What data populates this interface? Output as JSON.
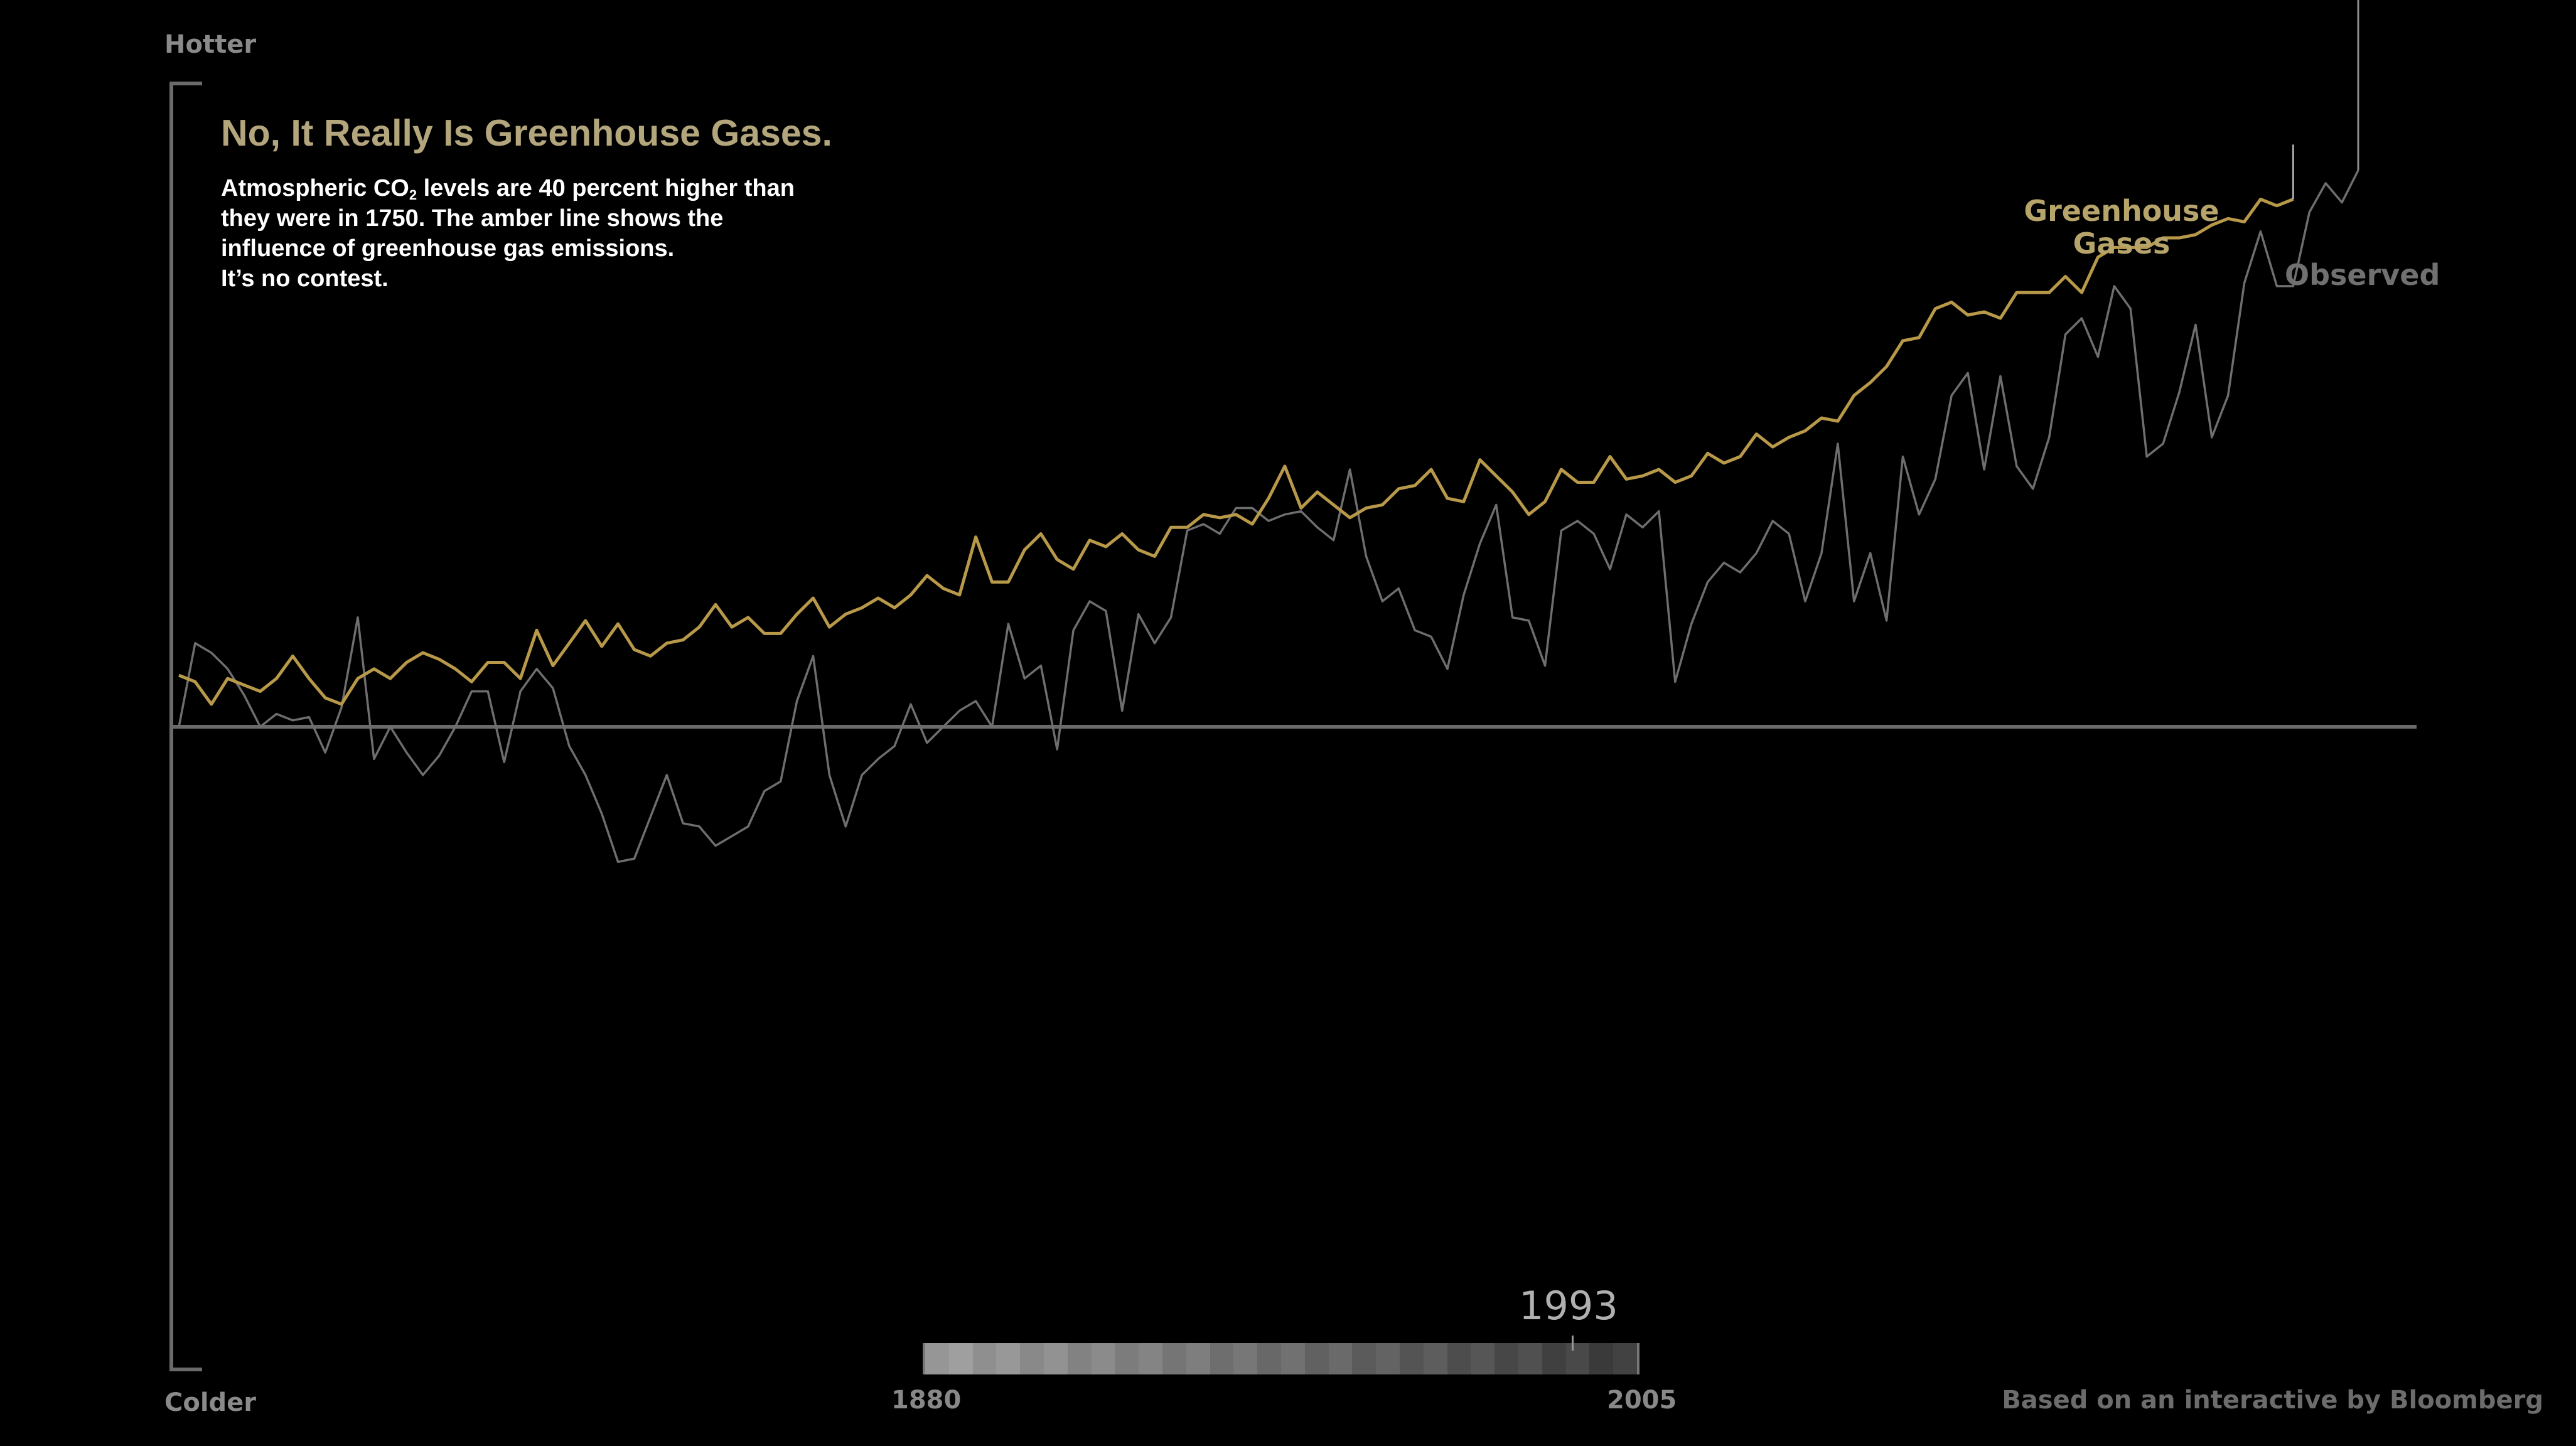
{
  "labels": {
    "top": "Hotter",
    "bottom": "Colder",
    "title": "No, It Really Is Greenhouse Gases.",
    "desc_line1_pre": "Atmospheric CO",
    "desc_sub": "2",
    "desc_line1_post": " levels are 40 percent higher than",
    "desc_line2": "they were in 1750.  The amber line shows the",
    "desc_line3": "influence of greenhouse gas emissions.",
    "desc_line4": "It’s no contest.",
    "series_ghg_line1": "Greenhouse",
    "series_ghg_line2": "Gases",
    "series_observed": "Observed",
    "current_year": "1993",
    "timeline_start": "1880",
    "timeline_end": "2005",
    "credit": "Based on an interactive by Bloomberg"
  },
  "colors": {
    "background": "#000000",
    "greenhouse": "#b8994a",
    "observed": "#6e6e6e",
    "axis": "#8a8a8a",
    "title": "#b3a57c"
  },
  "chart_data": {
    "type": "line",
    "x_start": 1880,
    "x_end": 2014,
    "ylim": [
      -1.0,
      1.0
    ],
    "grid": false,
    "series": [
      {
        "name": "Greenhouse Gases",
        "values": [
          0.08,
          0.07,
          0.035,
          0.075,
          0.065,
          0.055,
          0.075,
          0.11,
          0.075,
          0.045,
          0.035,
          0.075,
          0.09,
          0.075,
          0.1,
          0.115,
          0.105,
          0.09,
          0.07,
          0.1,
          0.1,
          0.075,
          0.15,
          0.095,
          0.13,
          0.165,
          0.125,
          0.16,
          0.12,
          0.11,
          0.13,
          0.135,
          0.155,
          0.19,
          0.155,
          0.17,
          0.145,
          0.145,
          0.175,
          0.2,
          0.155,
          0.175,
          0.185,
          0.2,
          0.185,
          0.205,
          0.235,
          0.215,
          0.205,
          0.295,
          0.225,
          0.225,
          0.275,
          0.3,
          0.26,
          0.245,
          0.29,
          0.28,
          0.3,
          0.275,
          0.265,
          0.31,
          0.31,
          0.33,
          0.325,
          0.33,
          0.315,
          0.355,
          0.405,
          0.34,
          0.365,
          0.345,
          0.325,
          0.34,
          0.345,
          0.37,
          0.375,
          0.4,
          0.355,
          0.35,
          0.415,
          0.39,
          0.365,
          0.33,
          0.35,
          0.4,
          0.38,
          0.38,
          0.42,
          0.385,
          0.39,
          0.4,
          0.38,
          0.39,
          0.425,
          0.41,
          0.42,
          0.455,
          0.435,
          0.45,
          0.46,
          0.48,
          0.475,
          0.515,
          0.535,
          0.56,
          0.6,
          0.605,
          0.65,
          0.66,
          0.64,
          0.645,
          0.635,
          0.675,
          0.675,
          0.675,
          0.7,
          0.675,
          0.73,
          0.745,
          0.745,
          0.745,
          0.76,
          0.76,
          0.765,
          0.78,
          0.79,
          0.785,
          0.82,
          0.81,
          0.82
        ],
        "end_marker": 0.905
      },
      {
        "name": "Observed",
        "values": [
          0.0,
          0.13,
          0.115,
          0.09,
          0.05,
          0.0,
          0.02,
          0.01,
          0.015,
          -0.04,
          0.03,
          0.17,
          -0.05,
          0.0,
          -0.04,
          -0.075,
          -0.045,
          0.0,
          0.055,
          0.055,
          -0.055,
          0.055,
          0.09,
          0.06,
          -0.03,
          -0.075,
          -0.135,
          -0.21,
          -0.205,
          -0.14,
          -0.075,
          -0.15,
          -0.155,
          -0.185,
          -0.17,
          -0.155,
          -0.1,
          -0.085,
          0.04,
          0.11,
          -0.075,
          -0.155,
          -0.075,
          -0.05,
          -0.03,
          0.035,
          -0.025,
          0.0,
          0.025,
          0.04,
          0.0,
          0.16,
          0.075,
          0.095,
          -0.035,
          0.15,
          0.195,
          0.18,
          0.025,
          0.175,
          0.13,
          0.17,
          0.305,
          0.315,
          0.3,
          0.34,
          0.34,
          0.32,
          0.33,
          0.335,
          0.31,
          0.29,
          0.4,
          0.265,
          0.195,
          0.215,
          0.15,
          0.14,
          0.09,
          0.205,
          0.285,
          0.345,
          0.17,
          0.165,
          0.095,
          0.305,
          0.32,
          0.3,
          0.245,
          0.33,
          0.31,
          0.335,
          0.07,
          0.16,
          0.225,
          0.255,
          0.24,
          0.27,
          0.32,
          0.3,
          0.195,
          0.27,
          0.44,
          0.195,
          0.27,
          0.165,
          0.42,
          0.33,
          0.385,
          0.515,
          0.55,
          0.4,
          0.545,
          0.405,
          0.37,
          0.45,
          0.61,
          0.635,
          0.575,
          0.685,
          0.65,
          0.42,
          0.44,
          0.52,
          0.625,
          0.45,
          0.515,
          0.69,
          0.77,
          0.685,
          0.685,
          0.8,
          0.845,
          0.815,
          0.865
        ],
        "end_marker": 1.13
      }
    ]
  }
}
